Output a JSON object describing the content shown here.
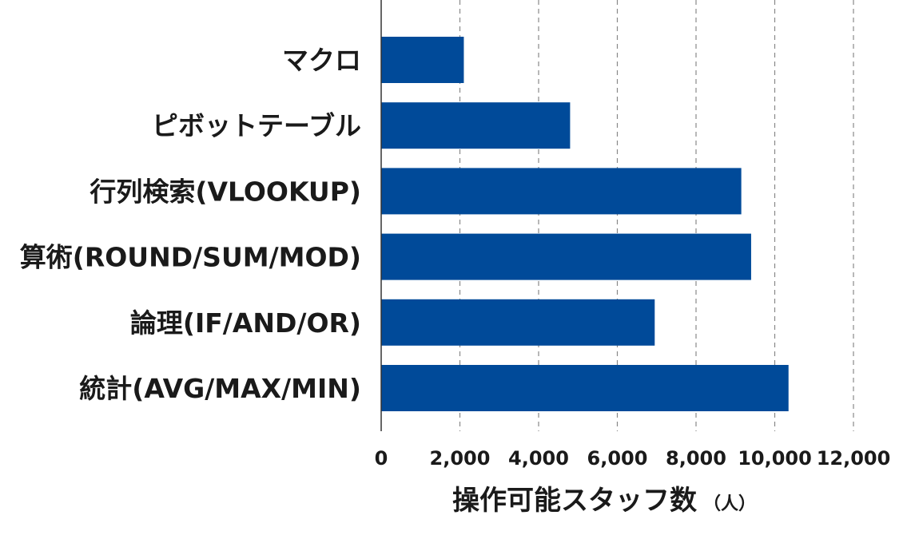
{
  "chart_data": {
    "type": "bar",
    "orientation": "horizontal",
    "categories": [
      "マクロ",
      "ピボットテーブル",
      "行列検索(VLOOKUP)",
      "算術(ROUND/SUM/MOD)",
      "論理(IF/AND/OR)",
      "統計(AVG/MAX/MIN)"
    ],
    "values": [
      2100,
      4800,
      9150,
      9400,
      6950,
      10350
    ],
    "xlabel": "操作可能スタッフ数",
    "xlabel_unit": "（人）",
    "xlim": [
      0,
      12000
    ],
    "xticks": [
      0,
      2000,
      4000,
      6000,
      8000,
      10000,
      12000
    ],
    "xtick_labels": [
      "0",
      "2,000",
      "4,000",
      "6,000",
      "8,000",
      "10,000",
      "12,000"
    ],
    "grid": "vertical dashed",
    "bar_color": "#004a99",
    "grid_color": "#888888",
    "axis_color": "#333333"
  }
}
